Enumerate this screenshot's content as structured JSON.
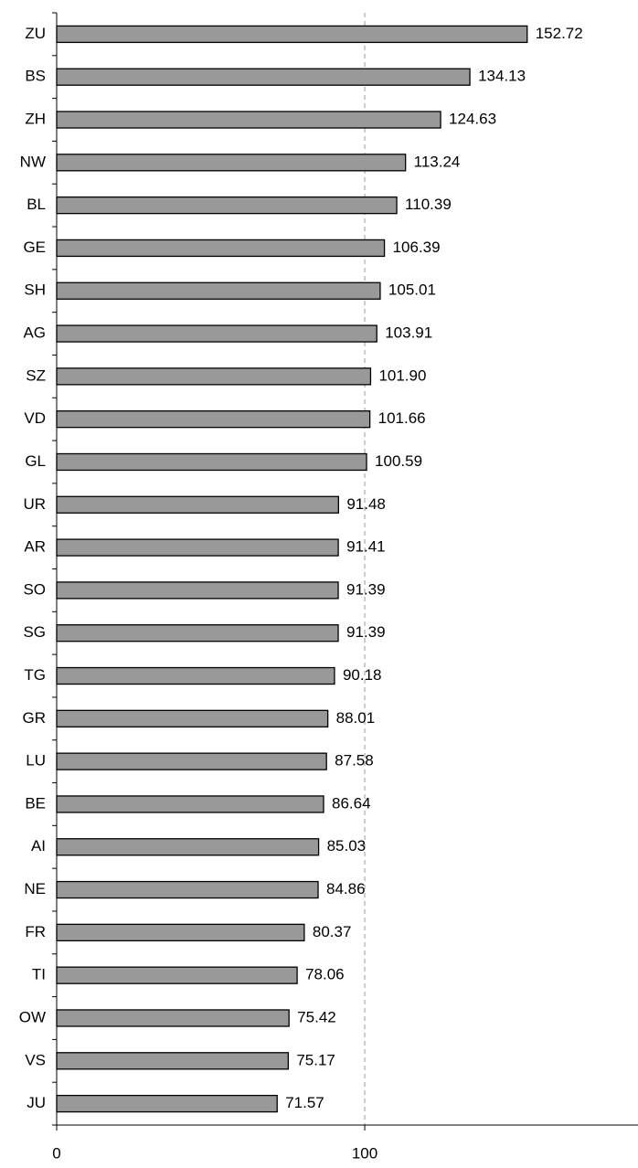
{
  "chart_data": {
    "type": "bar",
    "orientation": "horizontal",
    "categories": [
      "ZU",
      "BS",
      "ZH",
      "NW",
      "BL",
      "GE",
      "SH",
      "AG",
      "SZ",
      "VD",
      "GL",
      "UR",
      "AR",
      "SO",
      "SG",
      "TG",
      "GR",
      "LU",
      "BE",
      "AI",
      "NE",
      "FR",
      "TI",
      "OW",
      "VS",
      "JU"
    ],
    "values": [
      152.72,
      134.13,
      124.63,
      113.24,
      110.39,
      106.39,
      105.01,
      103.91,
      101.9,
      101.66,
      100.59,
      91.48,
      91.41,
      91.39,
      91.39,
      90.18,
      88.01,
      87.58,
      86.64,
      85.03,
      84.86,
      80.37,
      78.06,
      75.42,
      75.17,
      71.57
    ],
    "value_labels": [
      "152.72",
      "134.13",
      "124.63",
      "113.24",
      "110.39",
      "106.39",
      "105.01",
      "103.91",
      "101.90",
      "101.66",
      "100.59",
      "91.48",
      "91.41",
      "91.39",
      "91.39",
      "90.18",
      "88.01",
      "87.58",
      "86.64",
      "85.03",
      "84.86",
      "80.37",
      "78.06",
      "75.42",
      "75.17",
      "71.57"
    ],
    "color": "#999999",
    "xlim": [
      0,
      188.7
    ],
    "xticks": [
      0,
      100
    ],
    "grid": true
  }
}
